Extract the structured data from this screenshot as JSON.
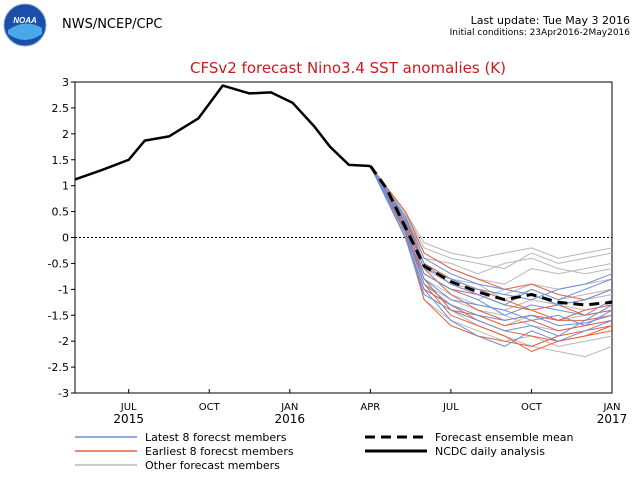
{
  "header": {
    "agency": "NWS/NCEP/CPC",
    "logo_text": "NOAA",
    "last_update": "Last update: Tue May 3 2016",
    "initial_conditions": "Initial conditions: 23Apr2016-2May2016"
  },
  "colors": {
    "title": "#d01818",
    "latest": "#6a8fd8",
    "earliest": "#e8603c",
    "other": "#b8b8b8",
    "analysis": "#000000",
    "logo_blue": "#1a4ea8",
    "logo_light": "#4aa8e8"
  },
  "chart_data": {
    "type": "line",
    "title": "CFSv2 forecast Nino3.4 SST anomalies (K)",
    "ylim": [
      -3,
      3
    ],
    "yticks": [
      "3",
      "2.5",
      "2",
      "1.5",
      "1",
      "0.5",
      "0",
      "-0.5",
      "-1",
      "-1.5",
      "-2",
      "-2.5",
      "-3"
    ],
    "xlim": [
      0,
      20
    ],
    "xticks": [
      {
        "x": 2,
        "label": "JUL",
        "sub": "2015"
      },
      {
        "x": 5,
        "label": "OCT",
        "sub": ""
      },
      {
        "x": 8,
        "label": "JAN",
        "sub": "2016"
      },
      {
        "x": 11,
        "label": "APR",
        "sub": ""
      },
      {
        "x": 14,
        "label": "JUL",
        "sub": ""
      },
      {
        "x": 17,
        "label": "OCT",
        "sub": ""
      },
      {
        "x": 20,
        "label": "JAN",
        "sub": "2017"
      }
    ],
    "ncdc_analysis": {
      "x": [
        0,
        1,
        2,
        2.6,
        3.5,
        4.6,
        5.5,
        6.5,
        7.3,
        8.1,
        8.9,
        9.5,
        10.2,
        11
      ],
      "y": [
        1.12,
        1.3,
        1.5,
        1.87,
        1.95,
        2.3,
        2.93,
        2.78,
        2.8,
        2.6,
        2.15,
        1.75,
        1.4,
        1.38
      ]
    },
    "ensemble_mean": {
      "x": [
        11,
        11.6,
        12.3,
        13,
        14,
        15,
        16,
        17,
        18,
        19,
        20
      ],
      "y": [
        1.38,
        0.95,
        0.2,
        -0.55,
        -0.85,
        -1.05,
        -1.2,
        -1.1,
        -1.25,
        -1.3,
        -1.25
      ]
    },
    "latest_members": [
      {
        "x": [
          11,
          12.3,
          13,
          14,
          15,
          16,
          17,
          18,
          19,
          20
        ],
        "y": [
          1.38,
          0.1,
          -0.9,
          -1.3,
          -1.5,
          -1.6,
          -1.5,
          -1.7,
          -1.65,
          -1.5
        ]
      },
      {
        "x": [
          11,
          12.3,
          13,
          14,
          15,
          16,
          17,
          18,
          19,
          20
        ],
        "y": [
          1.38,
          0.3,
          -0.5,
          -0.9,
          -1.1,
          -1.3,
          -1.0,
          -1.2,
          -1.0,
          -0.8
        ]
      },
      {
        "x": [
          11,
          12.3,
          13,
          14,
          15,
          16,
          17,
          18,
          19,
          20
        ],
        "y": [
          1.38,
          0.0,
          -1.0,
          -1.6,
          -1.9,
          -2.1,
          -1.8,
          -2.0,
          -1.8,
          -1.6
        ]
      },
      {
        "x": [
          11,
          12.3,
          13,
          14,
          15,
          16,
          17,
          18,
          19,
          20
        ],
        "y": [
          1.38,
          0.4,
          -0.4,
          -0.7,
          -0.9,
          -1.0,
          -1.1,
          -1.3,
          -1.2,
          -1.0
        ]
      },
      {
        "x": [
          11,
          12.3,
          13,
          14,
          15,
          16,
          17,
          18,
          19,
          20
        ],
        "y": [
          1.38,
          0.2,
          -0.8,
          -1.2,
          -1.3,
          -1.4,
          -1.6,
          -1.5,
          -1.7,
          -1.4
        ]
      },
      {
        "x": [
          11,
          12.3,
          13,
          14,
          15,
          16,
          17,
          18,
          19,
          20
        ],
        "y": [
          1.38,
          0.1,
          -0.7,
          -1.0,
          -1.2,
          -1.5,
          -1.3,
          -1.4,
          -1.5,
          -1.2
        ]
      },
      {
        "x": [
          11,
          12.3,
          13,
          14,
          15,
          16,
          17,
          18,
          19,
          20
        ],
        "y": [
          1.38,
          0.35,
          -0.6,
          -0.8,
          -1.0,
          -1.1,
          -1.2,
          -1.0,
          -0.9,
          -0.7
        ]
      },
      {
        "x": [
          11,
          12.3,
          13,
          14,
          15,
          16,
          17,
          18,
          19,
          20
        ],
        "y": [
          1.38,
          0.0,
          -1.1,
          -1.4,
          -1.6,
          -1.8,
          -1.7,
          -1.9,
          -1.6,
          -1.3
        ]
      }
    ],
    "earliest_members": [
      {
        "x": [
          11,
          12.3,
          13,
          14,
          15,
          16,
          17,
          18,
          19,
          20
        ],
        "y": [
          1.38,
          0.2,
          -0.9,
          -1.5,
          -1.7,
          -1.9,
          -2.2,
          -2.0,
          -1.9,
          -1.8
        ]
      },
      {
        "x": [
          11,
          12.3,
          13,
          14,
          15,
          16,
          17,
          18,
          19,
          20
        ],
        "y": [
          1.38,
          0.5,
          -0.3,
          -0.6,
          -0.8,
          -1.0,
          -0.9,
          -1.1,
          -1.2,
          -1.0
        ]
      },
      {
        "x": [
          11,
          12.3,
          13,
          14,
          15,
          16,
          17,
          18,
          19,
          20
        ],
        "y": [
          1.38,
          0.1,
          -1.2,
          -1.7,
          -1.9,
          -2.0,
          -2.1,
          -1.9,
          -1.8,
          -1.7
        ]
      },
      {
        "x": [
          11,
          12.3,
          13,
          14,
          15,
          16,
          17,
          18,
          19,
          20
        ],
        "y": [
          1.38,
          0.3,
          -0.6,
          -1.1,
          -1.4,
          -1.6,
          -1.5,
          -1.6,
          -1.4,
          -1.3
        ]
      },
      {
        "x": [
          11,
          12.3,
          13,
          14,
          15,
          16,
          17,
          18,
          19,
          20
        ],
        "y": [
          1.38,
          0.0,
          -1.0,
          -1.3,
          -1.6,
          -1.8,
          -1.9,
          -2.0,
          -1.9,
          -1.7
        ]
      },
      {
        "x": [
          11,
          12.3,
          13,
          14,
          15,
          16,
          17,
          18,
          19,
          20
        ],
        "y": [
          1.38,
          0.4,
          -0.5,
          -0.8,
          -1.0,
          -1.2,
          -1.4,
          -1.3,
          -1.5,
          -1.4
        ]
      },
      {
        "x": [
          11,
          12.3,
          13,
          14,
          15,
          16,
          17,
          18,
          19,
          20
        ],
        "y": [
          1.38,
          0.25,
          -0.7,
          -1.0,
          -1.1,
          -1.3,
          -1.4,
          -1.6,
          -1.6,
          -1.5
        ]
      },
      {
        "x": [
          11,
          12.3,
          13,
          14,
          15,
          16,
          17,
          18,
          19,
          20
        ],
        "y": [
          1.38,
          0.15,
          -0.8,
          -1.4,
          -1.5,
          -1.7,
          -1.6,
          -1.8,
          -1.7,
          -1.6
        ]
      }
    ],
    "other_members": [
      {
        "x": [
          11,
          12.3,
          13,
          14,
          15,
          16,
          17,
          18,
          19,
          20
        ],
        "y": [
          1.38,
          0.5,
          -0.2,
          -0.4,
          -0.5,
          -0.6,
          -0.3,
          -0.5,
          -0.4,
          -0.3
        ]
      },
      {
        "x": [
          11,
          12.3,
          13,
          14,
          15,
          16,
          17,
          18,
          19,
          20
        ],
        "y": [
          1.38,
          0.4,
          -0.3,
          -0.6,
          -0.8,
          -0.9,
          -0.6,
          -0.7,
          -0.6,
          -0.5
        ]
      },
      {
        "x": [
          11,
          12.3,
          13,
          14,
          15,
          16,
          17,
          18,
          19,
          20
        ],
        "y": [
          1.38,
          0.3,
          -0.6,
          -0.9,
          -1.0,
          -1.1,
          -0.9,
          -1.0,
          -0.9,
          -0.8
        ]
      },
      {
        "x": [
          11,
          12.3,
          13,
          14,
          15,
          16,
          17,
          18,
          19,
          20
        ],
        "y": [
          1.38,
          0.2,
          -0.8,
          -1.1,
          -1.3,
          -1.4,
          -1.2,
          -1.3,
          -1.2,
          -1.1
        ]
      },
      {
        "x": [
          11,
          12.3,
          13,
          14,
          15,
          16,
          17,
          18,
          19,
          20
        ],
        "y": [
          1.38,
          0.1,
          -1.0,
          -1.3,
          -1.5,
          -1.7,
          -1.5,
          -1.6,
          -1.5,
          -1.4
        ]
      },
      {
        "x": [
          11,
          12.3,
          13,
          14,
          15,
          16,
          17,
          18,
          19,
          20
        ],
        "y": [
          1.38,
          0.0,
          -1.2,
          -1.6,
          -1.8,
          -2.0,
          -1.9,
          -2.1,
          -2.0,
          -1.9
        ]
      },
      {
        "x": [
          11,
          12.3,
          13,
          14,
          15,
          16,
          17,
          18,
          19,
          20
        ],
        "y": [
          1.38,
          0.45,
          -0.4,
          -0.5,
          -0.7,
          -0.5,
          -0.4,
          -0.6,
          -0.7,
          -0.6
        ]
      },
      {
        "x": [
          11,
          12.3,
          13,
          14,
          15,
          16,
          17,
          18,
          19,
          20
        ],
        "y": [
          1.38,
          0.35,
          -0.5,
          -0.8,
          -0.9,
          -1.2,
          -1.0,
          -1.2,
          -1.1,
          -1.0
        ]
      },
      {
        "x": [
          11,
          12.3,
          13,
          14,
          15,
          16,
          17,
          18,
          19,
          20
        ],
        "y": [
          1.38,
          0.15,
          -0.9,
          -1.2,
          -1.4,
          -1.5,
          -1.7,
          -1.8,
          -1.7,
          -1.6
        ]
      },
      {
        "x": [
          11,
          12.3,
          13,
          14,
          15,
          16,
          17,
          18,
          19,
          20
        ],
        "y": [
          1.38,
          0.05,
          -1.1,
          -1.4,
          -1.7,
          -1.9,
          -2.1,
          -2.2,
          -2.3,
          -2.1
        ]
      },
      {
        "x": [
          11,
          12.3,
          13,
          14,
          15,
          16,
          17,
          18,
          19,
          20
        ],
        "y": [
          1.38,
          0.5,
          -0.1,
          -0.3,
          -0.4,
          -0.3,
          -0.2,
          -0.4,
          -0.3,
          -0.2
        ]
      },
      {
        "x": [
          11,
          12.3,
          13,
          14,
          15,
          16,
          17,
          18,
          19,
          20
        ],
        "y": [
          1.38,
          0.25,
          -0.7,
          -1.0,
          -1.2,
          -1.0,
          -1.1,
          -1.3,
          -1.4,
          -1.3
        ]
      }
    ],
    "legend": [
      {
        "label": "Latest 8 forecst members",
        "style": "latest"
      },
      {
        "label": "Earliest 8 forecst members",
        "style": "earliest"
      },
      {
        "label": "Other forecast members",
        "style": "other"
      },
      {
        "label": "Forecast ensemble mean",
        "style": "mean"
      },
      {
        "label": "NCDC daily analysis",
        "style": "analysis"
      }
    ]
  }
}
